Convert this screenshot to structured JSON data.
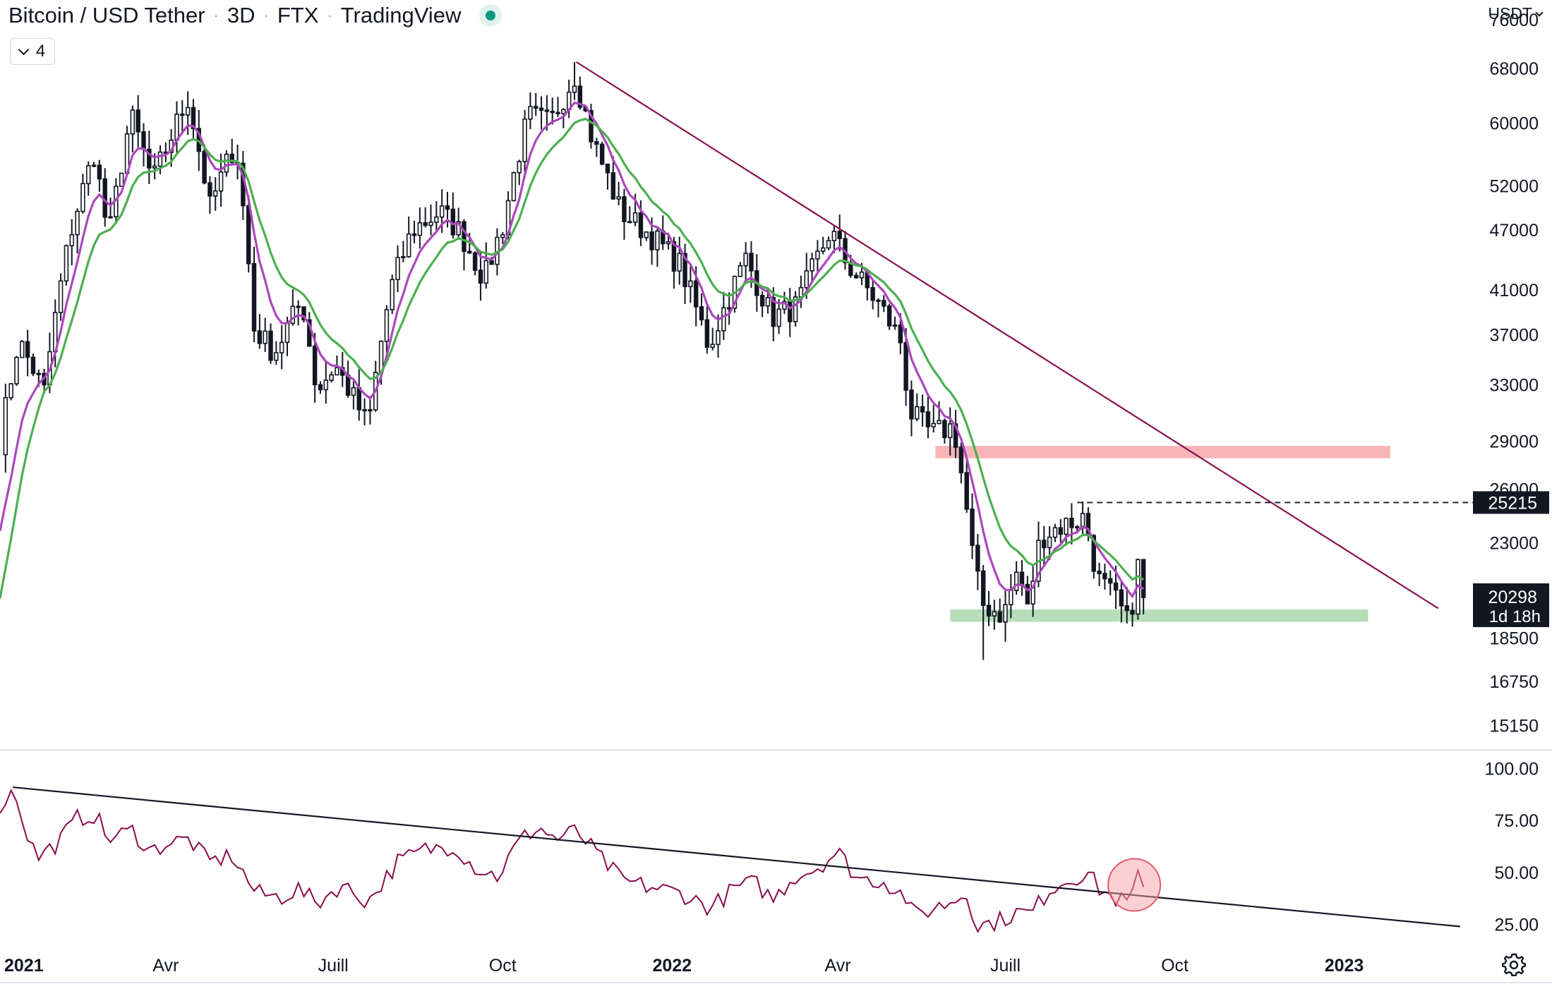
{
  "header": {
    "symbol": "Bitcoin / USD Tether",
    "interval": "3D",
    "exchange": "FTX",
    "source": "TradingView",
    "status_color": "#089981"
  },
  "indicators_toggle": {
    "count": "4"
  },
  "price_axis": {
    "currency": "USDT"
  },
  "settings": {
    "icon": "gear-icon"
  },
  "chart_data": [
    {
      "type": "candlestick",
      "scale": "log",
      "y_ticks": [
        76000,
        68000,
        60000,
        52000,
        47000,
        41000,
        37000,
        33000,
        29000,
        26000,
        23000,
        18500,
        16750,
        15150
      ],
      "x_ticks": [
        "2021",
        "Avr",
        "Juill",
        "Oct",
        "2022",
        "Avr",
        "Juill",
        "Oct",
        "2023"
      ],
      "x_ticks_bold": [
        "2021",
        "2022",
        "2023"
      ],
      "x_range": [
        "2021-01-01",
        "2023-03-15"
      ],
      "y_range": [
        14400,
        79500
      ],
      "up_color": "#ffffff",
      "down_color": "#131722",
      "series": [
        {
          "kind": "candles",
          "close_anchors": [
            [
              "2021-01-01",
              29000
            ],
            [
              "2021-01-11",
              36500
            ],
            [
              "2021-01-25",
              32500
            ],
            [
              "2021-02-08",
              46500
            ],
            [
              "2021-02-21",
              56000
            ],
            [
              "2021-03-01",
              46000
            ],
            [
              "2021-03-13",
              61000
            ],
            [
              "2021-03-25",
              52500
            ],
            [
              "2021-04-13",
              63500
            ],
            [
              "2021-04-25",
              49500
            ],
            [
              "2021-05-09",
              57500
            ],
            [
              "2021-05-19",
              37500
            ],
            [
              "2021-05-30",
              35500
            ],
            [
              "2021-06-14",
              40000
            ],
            [
              "2021-06-22",
              32500
            ],
            [
              "2021-07-02",
              34500
            ],
            [
              "2021-07-20",
              30000
            ],
            [
              "2021-08-01",
              41000
            ],
            [
              "2021-08-13",
              47000
            ],
            [
              "2021-08-28",
              49000
            ],
            [
              "2021-09-07",
              47000
            ],
            [
              "2021-09-21",
              42000
            ],
            [
              "2021-10-01",
              47500
            ],
            [
              "2021-10-15",
              61000
            ],
            [
              "2021-10-27",
              60000
            ],
            [
              "2021-11-09",
              67000
            ],
            [
              "2021-11-19",
              57500
            ],
            [
              "2021-12-04",
              49000
            ],
            [
              "2021-12-20",
              46500
            ],
            [
              "2022-01-05",
              43500
            ],
            [
              "2022-01-21",
              36000
            ],
            [
              "2022-02-10",
              44000
            ],
            [
              "2022-02-24",
              38500
            ],
            [
              "2022-03-10",
              39500
            ],
            [
              "2022-03-28",
              47000
            ],
            [
              "2022-04-06",
              43500
            ],
            [
              "2022-04-24",
              39500
            ],
            [
              "2022-05-05",
              36500
            ],
            [
              "2022-05-10",
              31000
            ],
            [
              "2022-05-22",
              29500
            ],
            [
              "2022-06-03",
              30000
            ],
            [
              "2022-06-13",
              22500
            ],
            [
              "2022-06-18",
              20000
            ],
            [
              "2022-06-30",
              19500
            ],
            [
              "2022-07-08",
              21700
            ],
            [
              "2022-07-13",
              19700
            ],
            [
              "2022-07-20",
              23300
            ],
            [
              "2022-07-29",
              23800
            ],
            [
              "2022-08-13",
              24400
            ],
            [
              "2022-08-20",
              21200
            ],
            [
              "2022-08-31",
              20050
            ],
            [
              "2022-09-06",
              19000
            ],
            [
              "2022-09-12",
              22350
            ],
            [
              "2022-09-15",
              20298
            ]
          ],
          "extremes": {
            "high": [
              "2021-11-10",
              69000
            ],
            "low": [
              "2022-06-18",
              17600
            ]
          }
        },
        {
          "name": "EMA fast",
          "color": "#ab47bc"
        },
        {
          "name": "EMA slow",
          "color": "#4caf50"
        }
      ],
      "zones": [
        {
          "kind": "resistance",
          "from": "2022-05-24",
          "to": "2023-01-26",
          "low": 27900,
          "high": 28700,
          "color": "#f7a1a6"
        },
        {
          "kind": "support",
          "from": "2022-06-01",
          "to": "2023-01-14",
          "low": 19200,
          "high": 19750,
          "color": "#a5d6a7"
        }
      ],
      "trendline": {
        "from": [
          "2021-11-10",
          69000
        ],
        "to": [
          "2023-02-21",
          19800
        ],
        "color": "#880e4f"
      },
      "horizontal_level": {
        "value": "25215",
        "from": "2022-08-09"
      },
      "last_price": {
        "value": "20298",
        "countdown": "1d 18h"
      }
    },
    {
      "type": "line",
      "name": "RSI",
      "y_ticks": [
        "100.00",
        "75.00",
        "50.00",
        "25.00"
      ],
      "y_range": [
        15,
        108
      ],
      "color": "#880e4f",
      "anchors": [
        [
          "2021-01-01",
          82
        ],
        [
          "2021-01-09",
          90
        ],
        [
          "2021-01-14",
          73
        ],
        [
          "2021-01-21",
          57
        ],
        [
          "2021-02-01",
          64
        ],
        [
          "2021-02-12",
          76
        ],
        [
          "2021-02-22",
          78
        ],
        [
          "2021-02-28",
          66
        ],
        [
          "2021-03-14",
          70
        ],
        [
          "2021-03-24",
          60
        ],
        [
          "2021-04-01",
          64
        ],
        [
          "2021-04-14",
          66
        ],
        [
          "2021-04-24",
          55
        ],
        [
          "2021-05-07",
          58
        ],
        [
          "2021-05-20",
          40
        ],
        [
          "2021-06-02",
          38
        ],
        [
          "2021-06-12",
          42
        ],
        [
          "2021-06-22",
          35
        ],
        [
          "2021-07-05",
          44
        ],
        [
          "2021-07-20",
          36
        ],
        [
          "2021-08-05",
          55
        ],
        [
          "2021-08-20",
          61
        ],
        [
          "2021-09-05",
          63
        ],
        [
          "2021-09-15",
          53
        ],
        [
          "2021-09-28",
          48
        ],
        [
          "2021-10-10",
          65
        ],
        [
          "2021-10-20",
          72
        ],
        [
          "2021-10-30",
          66
        ],
        [
          "2021-11-10",
          70
        ],
        [
          "2021-11-22",
          58
        ],
        [
          "2021-12-05",
          46
        ],
        [
          "2021-12-20",
          43
        ],
        [
          "2022-01-06",
          40
        ],
        [
          "2022-01-22",
          33
        ],
        [
          "2022-02-05",
          43
        ],
        [
          "2022-02-15",
          45
        ],
        [
          "2022-02-25",
          37
        ],
        [
          "2022-03-08",
          48
        ],
        [
          "2022-03-20",
          52
        ],
        [
          "2022-04-01",
          60
        ],
        [
          "2022-04-12",
          47
        ],
        [
          "2022-04-26",
          46
        ],
        [
          "2022-05-08",
          38
        ],
        [
          "2022-05-12",
          29
        ],
        [
          "2022-05-30",
          35
        ],
        [
          "2022-06-10",
          40
        ],
        [
          "2022-06-16",
          24
        ],
        [
          "2022-06-28",
          27
        ],
        [
          "2022-07-08",
          31
        ],
        [
          "2022-07-15",
          30
        ],
        [
          "2022-07-25",
          42
        ],
        [
          "2022-08-05",
          47
        ],
        [
          "2022-08-15",
          50
        ],
        [
          "2022-08-20",
          43
        ],
        [
          "2022-08-28",
          38
        ],
        [
          "2022-09-06",
          35
        ],
        [
          "2022-09-13",
          52
        ],
        [
          "2022-09-15",
          43
        ]
      ],
      "trendline": {
        "from": [
          "2021-01-08",
          91
        ],
        "to": [
          "2023-03-05",
          24
        ],
        "color": "#131722"
      },
      "highlight": {
        "center": [
          "2022-09-09",
          44
        ],
        "color": "#f7a1a6"
      }
    }
  ]
}
